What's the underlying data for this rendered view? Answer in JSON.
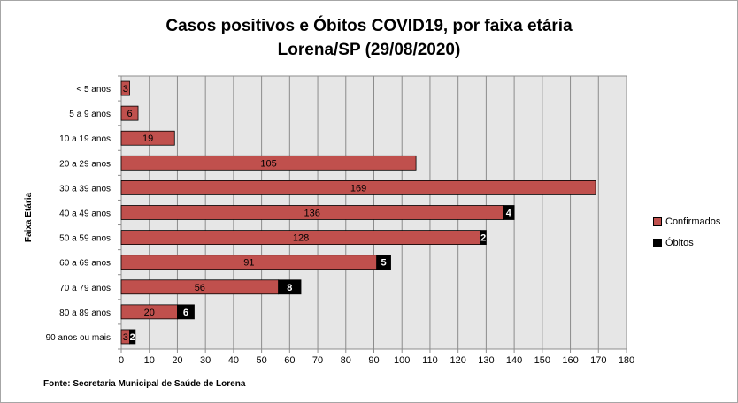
{
  "chart_data": {
    "type": "bar",
    "orientation": "horizontal",
    "stacked": true,
    "title_line1": "Casos positivos e Óbitos COVID19, por faixa etária",
    "title_line2": "Lorena/SP (29/08/2020)",
    "ylabel": "Faixa Etária",
    "xlabel": "",
    "xlim": [
      0,
      180
    ],
    "xticks": [
      0,
      10,
      20,
      30,
      40,
      50,
      60,
      70,
      80,
      90,
      100,
      110,
      120,
      130,
      140,
      150,
      160,
      170,
      180
    ],
    "grid": "vertical",
    "legend_position": "right",
    "categories": [
      "< 5 anos",
      "5 a 9 anos",
      "10 a 19 anos",
      "20 a 29 anos",
      "30 a 39 anos",
      "40 a 49 anos",
      "50 a 59 anos",
      "60 a 69 anos",
      "70 a 79 anos",
      "80 a 89 anos",
      "90 anos ou mais"
    ],
    "series": [
      {
        "name": "Confirmados",
        "color": "#c0504d",
        "values": [
          3,
          6,
          19,
          105,
          169,
          136,
          128,
          91,
          56,
          20,
          3
        ]
      },
      {
        "name": "Óbitos",
        "color": "#000000",
        "values": [
          null,
          null,
          null,
          null,
          null,
          4,
          2,
          5,
          8,
          6,
          2
        ]
      }
    ],
    "source": "Fonte: Secretaria Municipal  de Saúde de Lorena"
  }
}
